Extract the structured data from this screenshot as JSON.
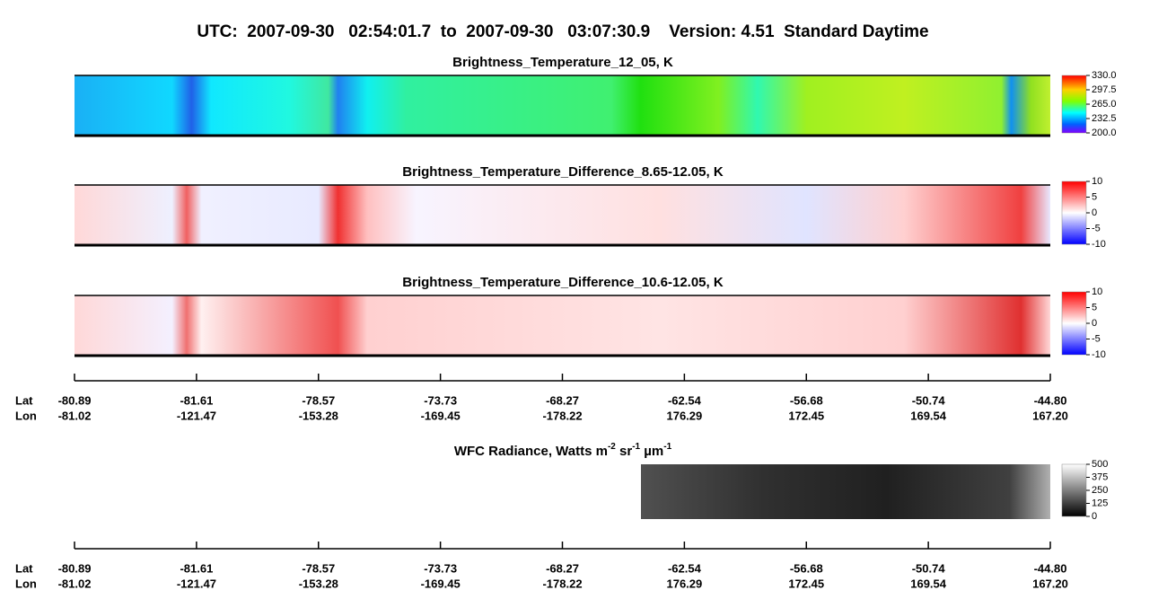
{
  "title": "UTC:  2007-09-30   02:54:01.7  to  2007-09-30   03:07:30.9    Version: 4.51  Standard Daytime",
  "panels": [
    {
      "title": "Brightness_Temperature_12_05, K",
      "colorbar_ticks": [
        "330.0",
        "297.5",
        "265.0",
        "232.5",
        "200.0"
      ]
    },
    {
      "title": "Brightness_Temperature_Difference_8.65-12.05, K",
      "colorbar_ticks": [
        "10",
        "5",
        "0",
        "-5",
        "-10"
      ]
    },
    {
      "title": "Brightness_Temperature_Difference_10.6-12.05, K",
      "colorbar_ticks": [
        "10",
        "5",
        "0",
        "-5",
        "-10"
      ]
    }
  ],
  "wfc": {
    "title_parts": [
      "WFC Radiance, Watts m",
      "-2",
      " sr",
      "-1",
      " µm",
      "-1"
    ],
    "colorbar_ticks": [
      "500",
      "375",
      "250",
      "125",
      "0"
    ]
  },
  "axes": [
    {
      "lat_label": "Lat",
      "lon_label": "Lon",
      "lat": [
        "-80.89",
        "-81.61",
        "-78.57",
        "-73.73",
        "-68.27",
        "-62.54",
        "-56.68",
        "-50.74",
        "-44.80"
      ],
      "lon": [
        "-81.02",
        "-121.47",
        "-153.28",
        "-169.45",
        "-178.22",
        "176.29",
        "172.45",
        "169.54",
        "167.20"
      ]
    },
    {
      "lat_label": "Lat",
      "lon_label": "Lon",
      "lat": [
        "-80.89",
        "-81.61",
        "-78.57",
        "-73.73",
        "-68.27",
        "-62.54",
        "-56.68",
        "-50.74",
        "-44.80"
      ],
      "lon": [
        "-81.02",
        "-121.47",
        "-153.28",
        "-169.45",
        "-178.22",
        "176.29",
        "172.45",
        "169.54",
        "167.20"
      ]
    }
  ]
}
